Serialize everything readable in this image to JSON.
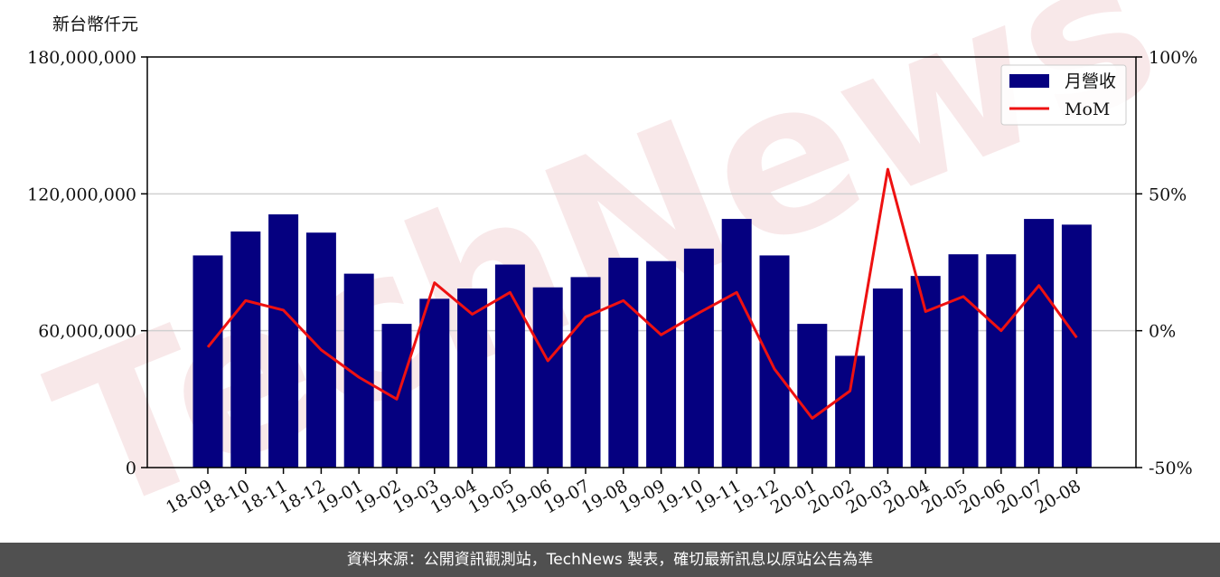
{
  "chart_data": {
    "type": "bar+line",
    "categories": [
      "18-09",
      "18-10",
      "18-11",
      "18-12",
      "19-01",
      "19-02",
      "19-03",
      "19-04",
      "19-05",
      "19-06",
      "19-07",
      "19-08",
      "19-09",
      "19-10",
      "19-11",
      "19-12",
      "20-01",
      "20-02",
      "20-03",
      "20-04",
      "20-05",
      "20-06",
      "20-07",
      "20-08"
    ],
    "series": [
      {
        "name": "月營收",
        "type": "bar",
        "axis": "left",
        "color": "#050080",
        "values": [
          93000000,
          103500000,
          111000000,
          103000000,
          85000000,
          63000000,
          74000000,
          78500000,
          89000000,
          79000000,
          83500000,
          92000000,
          90500000,
          96000000,
          109000000,
          93000000,
          63000000,
          49000000,
          78500000,
          84000000,
          93500000,
          93500000,
          109000000,
          106500000
        ]
      },
      {
        "name": "MoM",
        "type": "line",
        "axis": "right",
        "color": "#ee1111",
        "values": [
          -6,
          11,
          7.5,
          -7,
          -17,
          -25,
          17.5,
          6,
          14,
          -11,
          5,
          11,
          -1.5,
          6.5,
          14,
          -14,
          -32,
          -22,
          59,
          7,
          12.5,
          0,
          16.5,
          -2.5
        ]
      }
    ],
    "left_axis": {
      "label": "新台幣仟元",
      "ticks": [
        0,
        60000000,
        120000000,
        180000000
      ],
      "tick_labels": [
        "0",
        "60,000,000",
        "120,000,000",
        "180,000,000"
      ],
      "ylim": [
        0,
        180000000
      ]
    },
    "right_axis": {
      "ticks": [
        -50,
        0,
        50,
        100
      ],
      "tick_labels": [
        "-50%",
        "0%",
        "50%",
        "100%"
      ],
      "ylim": [
        -50,
        100
      ]
    },
    "grid": "horizontal",
    "legend_position": "top-right"
  },
  "watermark": {
    "text": "TechNews",
    "color": "#f3d6d8"
  },
  "footer": {
    "text": "資料來源：公開資訊觀測站，TechNews 製表，確切最新訊息以原站公告為準",
    "color": "#505050"
  }
}
